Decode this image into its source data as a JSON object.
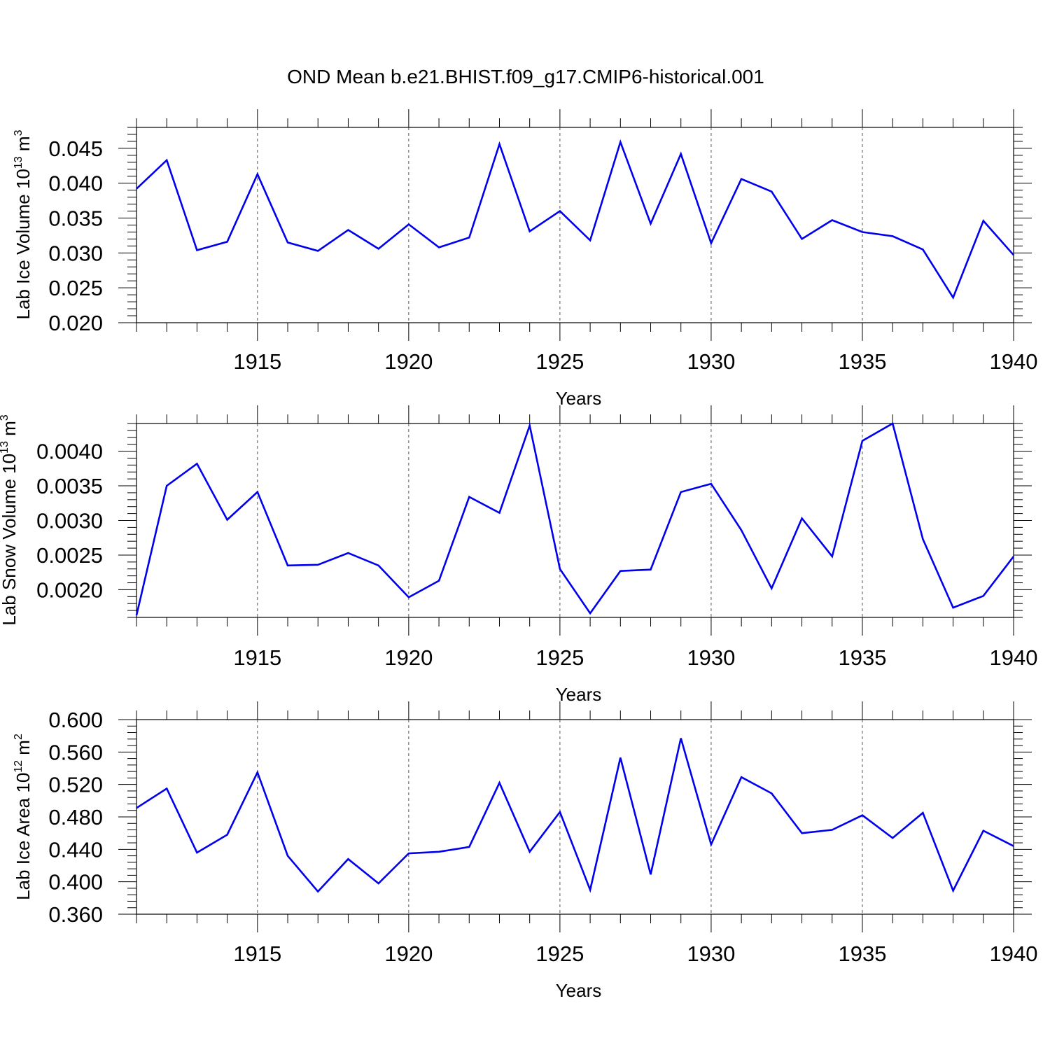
{
  "figure_title": "OND Mean b.e21.BHIST.f09_g17.CMIP6-historical.001",
  "chart_data": [
    {
      "type": "line",
      "title": "OND Mean b.e21.BHIST.f09_g17.CMIP6-historical.001",
      "xlabel": "Years",
      "ylabel": {
        "base": "Lab Ice Volume 10",
        "exp": "13",
        "unit": " m",
        "unit_exp": "3"
      },
      "xlim": [
        1911,
        1940
      ],
      "ylim": [
        0.02,
        0.048
      ],
      "x_ticks": [
        1915,
        1920,
        1925,
        1930,
        1935,
        1940
      ],
      "y_ticks": [
        "0.020",
        "0.025",
        "0.030",
        "0.035",
        "0.040",
        "0.045"
      ],
      "series_color": "#0000ee",
      "x": [
        1911,
        1912,
        1913,
        1914,
        1915,
        1916,
        1917,
        1918,
        1919,
        1920,
        1921,
        1922,
        1923,
        1924,
        1925,
        1926,
        1927,
        1928,
        1929,
        1930,
        1931,
        1932,
        1933,
        1934,
        1935,
        1936,
        1937,
        1938,
        1939,
        1940
      ],
      "values": [
        0.0392,
        0.0433,
        0.0304,
        0.0316,
        0.0413,
        0.0315,
        0.0303,
        0.0333,
        0.0306,
        0.0341,
        0.0308,
        0.0322,
        0.0456,
        0.0331,
        0.036,
        0.0318,
        0.0459,
        0.0342,
        0.0442,
        0.0314,
        0.0406,
        0.0388,
        0.032,
        0.0347,
        0.033,
        0.0324,
        0.0305,
        0.0236,
        0.0346,
        0.0297
      ]
    },
    {
      "type": "line",
      "xlabel": "Years",
      "ylabel": {
        "base": "Lab Snow Volume 10",
        "exp": "13",
        "unit": " m",
        "unit_exp": "3"
      },
      "xlim": [
        1911,
        1940
      ],
      "ylim": [
        0.0016,
        0.0044
      ],
      "x_ticks": [
        1915,
        1920,
        1925,
        1930,
        1935,
        1940
      ],
      "y_ticks": [
        "0.0020",
        "0.0025",
        "0.0030",
        "0.0035",
        "0.0040"
      ],
      "series_color": "#0000ee",
      "x": [
        1911,
        1912,
        1913,
        1914,
        1915,
        1916,
        1917,
        1918,
        1919,
        1920,
        1921,
        1922,
        1923,
        1924,
        1925,
        1926,
        1927,
        1928,
        1929,
        1930,
        1931,
        1932,
        1933,
        1934,
        1935,
        1936,
        1937,
        1938,
        1939,
        1940
      ],
      "values": [
        0.00163,
        0.0035,
        0.00382,
        0.00301,
        0.00341,
        0.00235,
        0.00236,
        0.00253,
        0.00235,
        0.00189,
        0.00213,
        0.00334,
        0.00311,
        0.00437,
        0.0023,
        0.00166,
        0.00227,
        0.00229,
        0.00341,
        0.00353,
        0.00286,
        0.00202,
        0.00303,
        0.00248,
        0.00415,
        0.0044,
        0.00273,
        0.00174,
        0.00191,
        0.00248
      ]
    },
    {
      "type": "line",
      "xlabel": "Years",
      "ylabel": {
        "base": "Lab Ice Area 10",
        "exp": "12",
        "unit": " m",
        "unit_exp": "2"
      },
      "xlim": [
        1911,
        1940
      ],
      "ylim": [
        0.36,
        0.6
      ],
      "x_ticks": [
        1915,
        1920,
        1925,
        1930,
        1935,
        1940
      ],
      "y_ticks": [
        "0.360",
        "0.400",
        "0.440",
        "0.480",
        "0.520",
        "0.560",
        "0.600"
      ],
      "series_color": "#0000ee",
      "x": [
        1911,
        1912,
        1913,
        1914,
        1915,
        1916,
        1917,
        1918,
        1919,
        1920,
        1921,
        1922,
        1923,
        1924,
        1925,
        1926,
        1927,
        1928,
        1929,
        1930,
        1931,
        1932,
        1933,
        1934,
        1935,
        1936,
        1937,
        1938,
        1939,
        1940
      ],
      "values": [
        0.491,
        0.515,
        0.436,
        0.458,
        0.535,
        0.432,
        0.388,
        0.428,
        0.398,
        0.435,
        0.437,
        0.443,
        0.522,
        0.437,
        0.486,
        0.39,
        0.553,
        0.409,
        0.577,
        0.446,
        0.529,
        0.509,
        0.46,
        0.464,
        0.482,
        0.454,
        0.485,
        0.389,
        0.463,
        0.444
      ]
    }
  ]
}
